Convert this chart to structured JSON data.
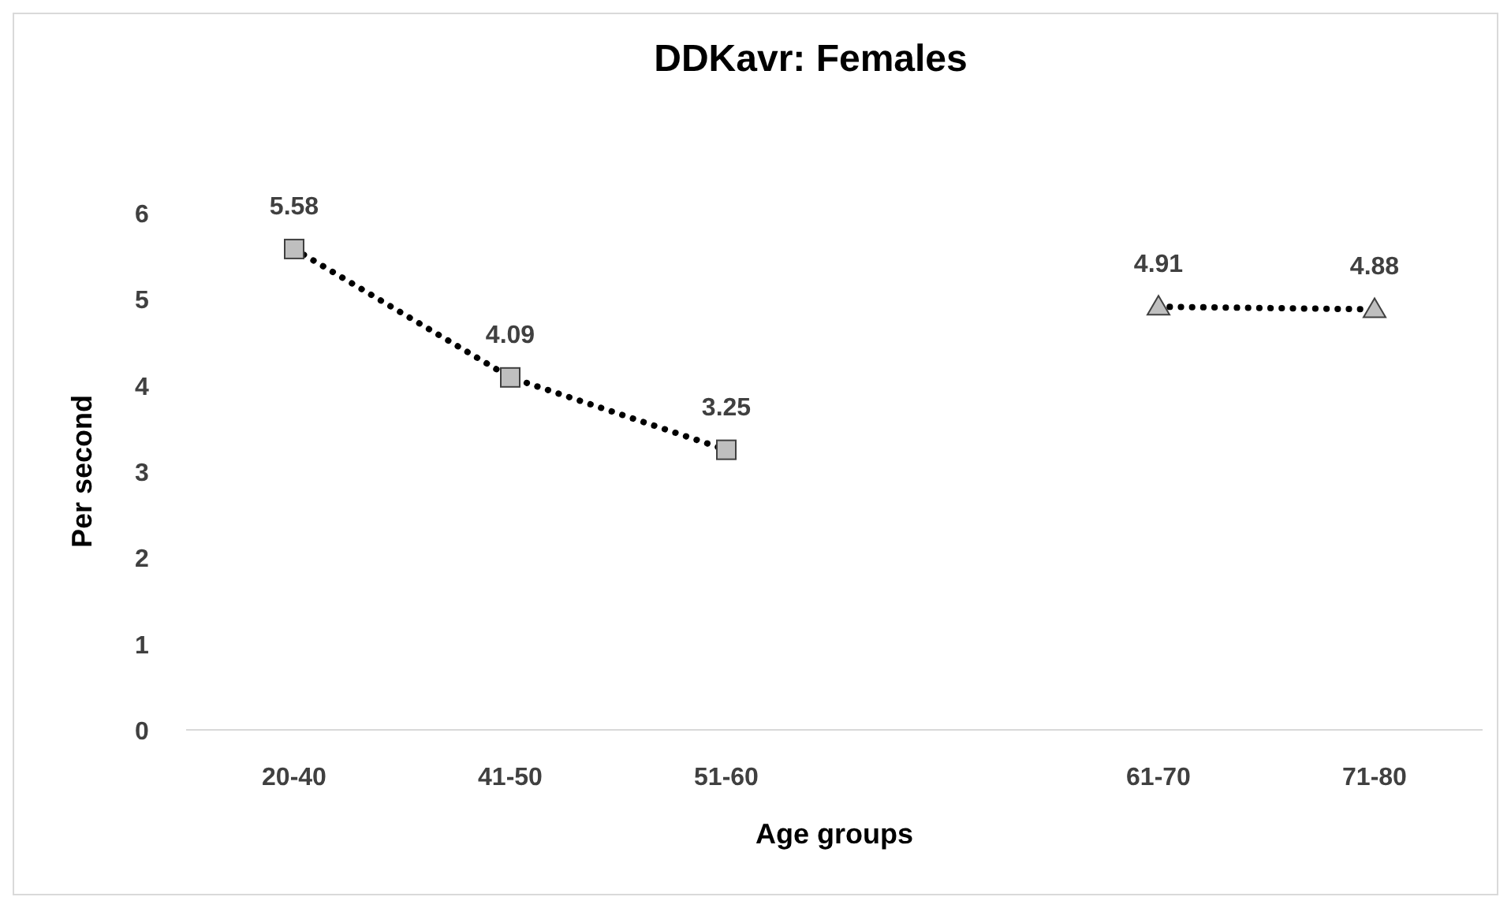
{
  "chart_data": {
    "type": "line",
    "title": "DDKavr: Females",
    "xlabel": "Age groups",
    "ylabel": "Per second",
    "categories": [
      "20-40",
      "41-50",
      "51-60",
      null,
      "61-70",
      "71-80"
    ],
    "series": [
      {
        "color": "#000000",
        "marker": "square",
        "values": [
          5.58,
          4.09,
          3.25,
          null,
          null,
          null
        ]
      },
      {
        "color": "#000000",
        "marker": "triangle",
        "values": [
          null,
          null,
          null,
          null,
          4.91,
          4.88
        ]
      }
    ],
    "ylim": [
      0,
      6
    ],
    "yticks": [
      0,
      1,
      2,
      3,
      4,
      5,
      6
    ],
    "grid": false,
    "line_style": "dotted",
    "data_labels": true
  }
}
